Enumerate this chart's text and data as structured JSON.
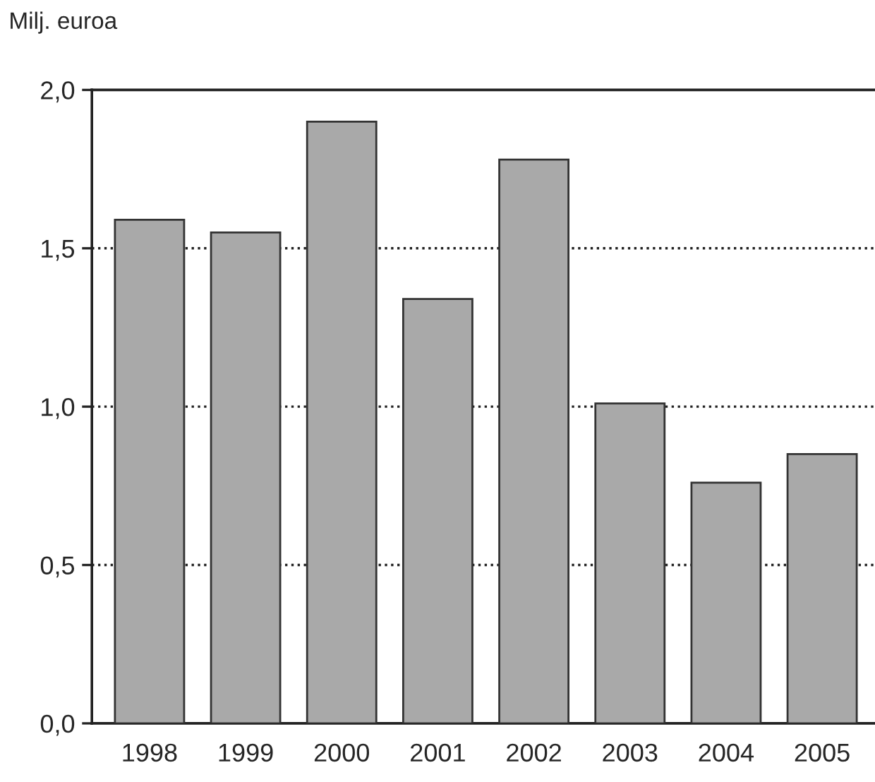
{
  "chart_data": {
    "type": "bar",
    "ylabel": "Milj. euroa",
    "categories": [
      "1998",
      "1999",
      "2000",
      "2001",
      "2002",
      "2003",
      "2004",
      "2005"
    ],
    "values": [
      1.59,
      1.55,
      1.9,
      1.34,
      1.78,
      1.01,
      0.76,
      0.85
    ],
    "color": "#a9a9a9",
    "ylim": [
      0,
      2
    ],
    "yticks": [
      {
        "value": 0,
        "label": "0,0"
      },
      {
        "value": 0.5,
        "label": "0,5"
      },
      {
        "value": 1,
        "label": "1,0"
      },
      {
        "value": 1.5,
        "label": "1,5"
      },
      {
        "value": 2,
        "label": "2,0"
      }
    ],
    "grid": "y",
    "line_style": "dotted"
  }
}
